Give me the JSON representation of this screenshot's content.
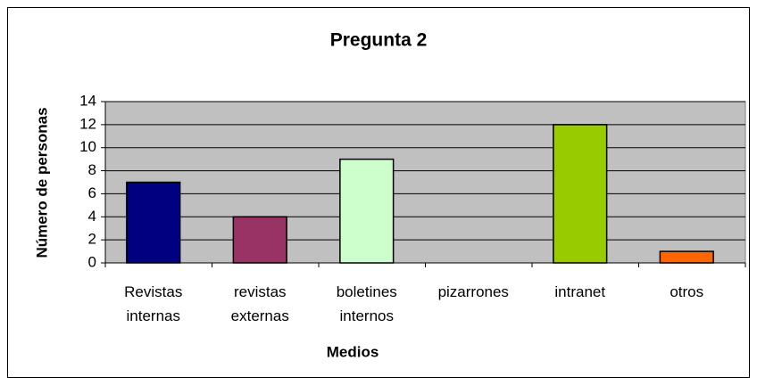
{
  "chart_data": {
    "type": "bar",
    "title": "Pregunta 2",
    "x_label": "Medios",
    "y_label": "Número de personas",
    "categories": [
      "Revistas internas",
      "revistas externas",
      "boletines internos",
      "pizarrones",
      "intranet",
      "otros"
    ],
    "values": [
      7,
      4,
      9,
      0,
      12,
      1
    ],
    "colors": [
      "#000080",
      "#993366",
      "#ccffcc",
      "#ffffcc",
      "#99cc00",
      "#ff6600"
    ],
    "ylim": [
      0,
      14
    ],
    "yticks": [
      0,
      2,
      4,
      6,
      8,
      10,
      12,
      14
    ],
    "grid": true
  }
}
